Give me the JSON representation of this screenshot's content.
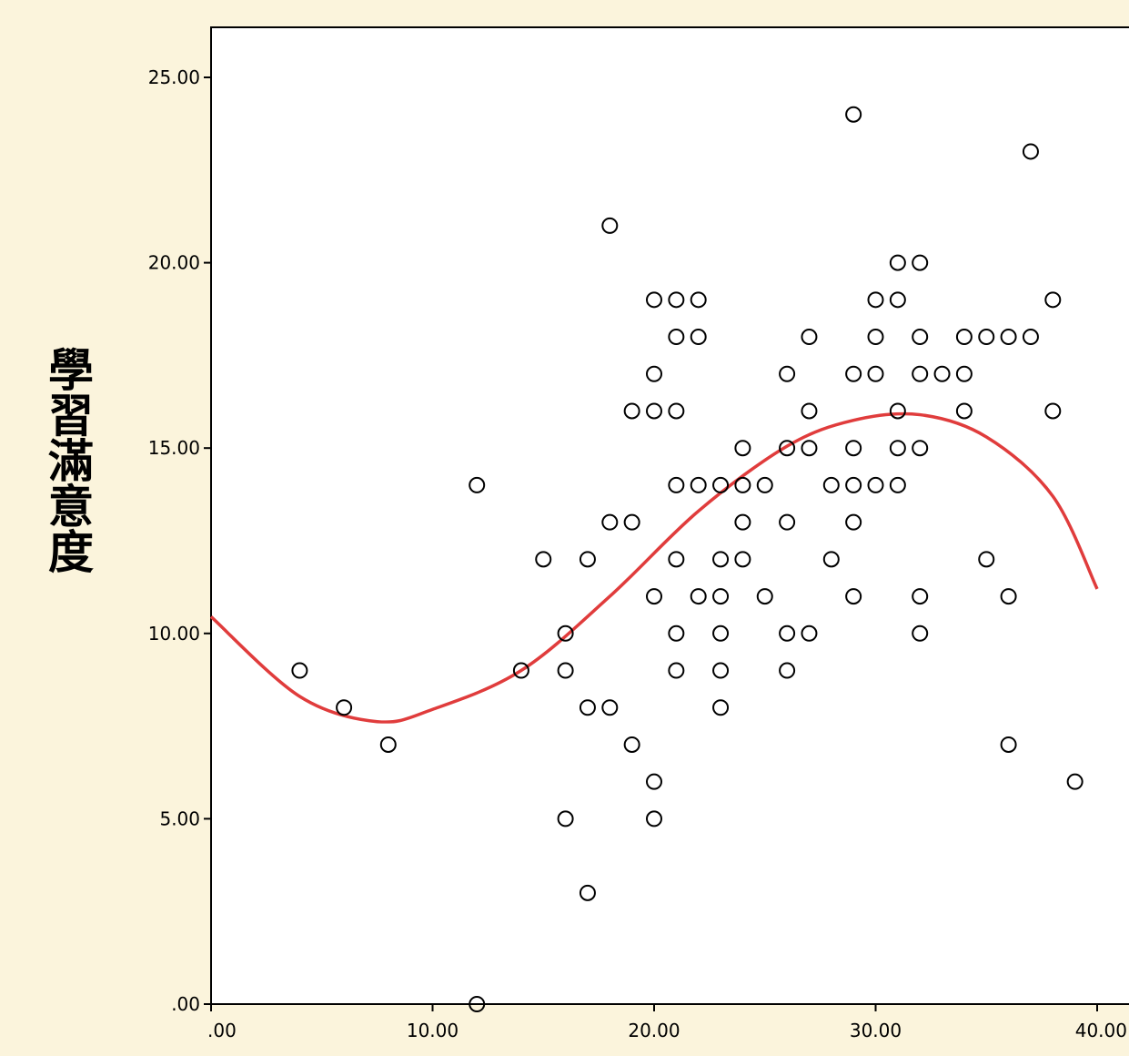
{
  "chart_data": {
    "type": "scatter",
    "title": "",
    "xlabel": "",
    "ylabel": "學習滿意度",
    "xlim": [
      0,
      40
    ],
    "ylim": [
      0,
      25
    ],
    "x_ticks": [
      ".00",
      "10.00",
      "20.00",
      "30.00",
      "40.00"
    ],
    "y_ticks": [
      ".00",
      "5.00",
      "10.00",
      "15.00",
      "20.00",
      "25.00"
    ],
    "grid": false,
    "legend": "none",
    "colors": {
      "background": "#fbf4dc",
      "plot_bg": "#ffffff",
      "fit_line": "#e03c3c",
      "points": "#000000"
    },
    "fit_line": {
      "type": "cubic",
      "points": [
        [
          0,
          10.45
        ],
        [
          4,
          8.3
        ],
        [
          7.5,
          7.62
        ],
        [
          10,
          7.95
        ],
        [
          14,
          9.0
        ],
        [
          18,
          11.0
        ],
        [
          22,
          13.3
        ],
        [
          26,
          15.05
        ],
        [
          29,
          15.75
        ],
        [
          32,
          15.9
        ],
        [
          35,
          15.3
        ],
        [
          38,
          13.7
        ],
        [
          40,
          11.2
        ]
      ]
    },
    "points": [
      [
        4,
        9
      ],
      [
        6,
        8
      ],
      [
        8,
        7
      ],
      [
        12,
        14
      ],
      [
        12,
        0
      ],
      [
        14,
        9
      ],
      [
        15,
        12
      ],
      [
        16,
        10
      ],
      [
        16,
        9
      ],
      [
        16,
        5
      ],
      [
        17,
        12
      ],
      [
        17,
        8
      ],
      [
        17,
        3
      ],
      [
        18,
        21
      ],
      [
        18,
        13
      ],
      [
        18,
        8
      ],
      [
        19,
        16
      ],
      [
        19,
        13
      ],
      [
        19,
        7
      ],
      [
        20,
        19
      ],
      [
        20,
        17
      ],
      [
        20,
        16
      ],
      [
        20,
        11
      ],
      [
        20,
        6
      ],
      [
        20,
        5
      ],
      [
        21,
        19
      ],
      [
        21,
        18
      ],
      [
        21,
        16
      ],
      [
        21,
        14
      ],
      [
        21,
        12
      ],
      [
        21,
        10
      ],
      [
        21,
        9
      ],
      [
        22,
        19
      ],
      [
        22,
        18
      ],
      [
        22,
        14
      ],
      [
        22,
        11
      ],
      [
        23,
        14
      ],
      [
        23,
        12
      ],
      [
        23,
        11
      ],
      [
        23,
        10
      ],
      [
        23,
        9
      ],
      [
        23,
        8
      ],
      [
        24,
        15
      ],
      [
        24,
        14
      ],
      [
        24,
        13
      ],
      [
        24,
        12
      ],
      [
        25,
        14
      ],
      [
        25,
        11
      ],
      [
        26,
        17
      ],
      [
        26,
        15
      ],
      [
        26,
        13
      ],
      [
        26,
        10
      ],
      [
        26,
        9
      ],
      [
        27,
        18
      ],
      [
        27,
        16
      ],
      [
        27,
        15
      ],
      [
        27,
        10
      ],
      [
        28,
        14
      ],
      [
        28,
        12
      ],
      [
        29,
        24
      ],
      [
        29,
        17
      ],
      [
        29,
        15
      ],
      [
        29,
        14
      ],
      [
        29,
        13
      ],
      [
        29,
        11
      ],
      [
        30,
        19
      ],
      [
        30,
        18
      ],
      [
        30,
        17
      ],
      [
        30,
        14
      ],
      [
        31,
        20
      ],
      [
        31,
        19
      ],
      [
        31,
        16
      ],
      [
        31,
        15
      ],
      [
        31,
        14
      ],
      [
        32,
        20
      ],
      [
        32,
        18
      ],
      [
        32,
        17
      ],
      [
        32,
        15
      ],
      [
        32,
        11
      ],
      [
        32,
        10
      ],
      [
        33,
        17
      ],
      [
        34,
        18
      ],
      [
        34,
        17
      ],
      [
        34,
        16
      ],
      [
        35,
        18
      ],
      [
        35,
        12
      ],
      [
        36,
        18
      ],
      [
        36,
        11
      ],
      [
        36,
        7
      ],
      [
        37,
        23
      ],
      [
        37,
        18
      ],
      [
        38,
        19
      ],
      [
        38,
        16
      ],
      [
        39,
        6
      ]
    ]
  }
}
